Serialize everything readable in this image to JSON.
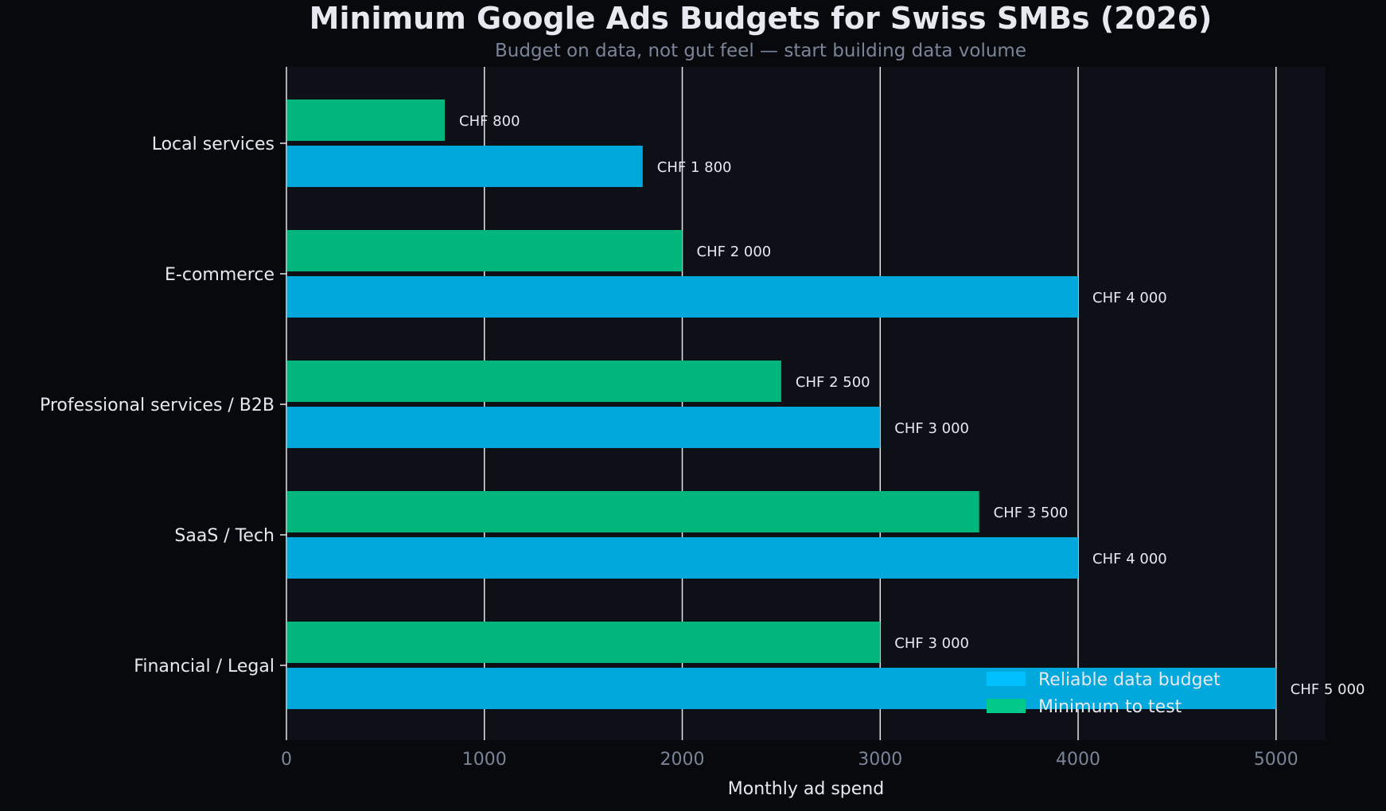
{
  "chart_data": {
    "type": "bar",
    "orientation": "horizontal",
    "title": "Minimum Google Ads Budgets for Swiss SMBs (2026)",
    "subtitle": "Budget on data, not gut feel — start building data volume",
    "xlabel": "Monthly ad spend",
    "ylabel": "",
    "xlim": [
      0,
      5250
    ],
    "xticks": [
      0,
      1000,
      2000,
      3000,
      4000,
      5000
    ],
    "grid": "vertical",
    "legend_position": "bottom-right",
    "categories": [
      "Local services",
      "E-commerce",
      "Professional services / B2B",
      "SaaS / Tech",
      "Financial / Legal"
    ],
    "series": [
      {
        "name": "Reliable data budget",
        "color": "#00a8dc",
        "legend_color": "#00bfff",
        "values": [
          1800,
          4000,
          3000,
          4000,
          5000
        ],
        "labels": [
          "CHF 1 800",
          "CHF 4 000",
          "CHF 3 000",
          "CHF 4 000",
          "CHF 5 000"
        ]
      },
      {
        "name": "Minimum to test",
        "color": "#00b67a",
        "legend_color": "#00c98a",
        "values": [
          800,
          2000,
          2500,
          3500,
          3000
        ],
        "labels": [
          "CHF 800",
          "CHF 2 000",
          "CHF 2 500",
          "CHF 3 500",
          "CHF 3 000"
        ]
      }
    ],
    "colors": {
      "background": "#07090d",
      "plot_background": "#0d1017",
      "text": "#e6e9ef",
      "tick_text": "#7a8599",
      "grid": "#e6e6e6"
    }
  }
}
